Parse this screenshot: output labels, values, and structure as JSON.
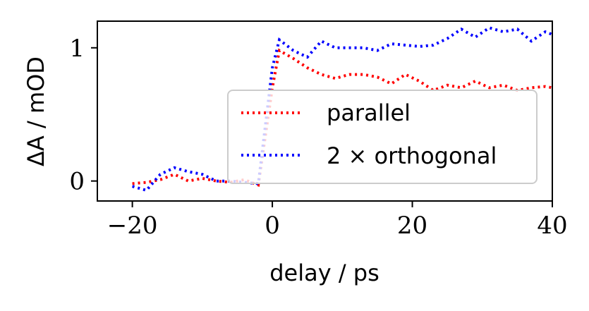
{
  "chart_data": {
    "type": "line",
    "xlabel": "delay / ps",
    "ylabel": "ΔA / mOD",
    "xlim": [
      -25,
      40
    ],
    "ylim": [
      -0.15,
      1.2
    ],
    "xticks": [
      -20,
      0,
      20,
      40
    ],
    "xtick_labels": [
      "−20",
      "0",
      "20",
      "40"
    ],
    "yticks": [
      0,
      1
    ],
    "ytick_labels": [
      "0",
      "1"
    ],
    "grid": false,
    "legend_position": "center-right",
    "series": [
      {
        "name": "parallel",
        "color": "#ff0000",
        "style": "dotted",
        "x": [
          -20,
          -18,
          -16,
          -14,
          -12,
          -10,
          -8,
          -6,
          -4,
          -2,
          0,
          1,
          3,
          5,
          7,
          9,
          11,
          13,
          15,
          17,
          19,
          21,
          23,
          25,
          27,
          29,
          31,
          33,
          35,
          37,
          39,
          40
        ],
        "y": [
          -0.02,
          -0.01,
          0.01,
          0.05,
          0.0,
          0.02,
          0.0,
          -0.01,
          0.01,
          -0.03,
          0.7,
          0.98,
          0.92,
          0.85,
          0.8,
          0.77,
          0.8,
          0.8,
          0.78,
          0.73,
          0.8,
          0.75,
          0.68,
          0.72,
          0.7,
          0.75,
          0.7,
          0.72,
          0.68,
          0.7,
          0.71,
          0.7
        ]
      },
      {
        "name": "2 × orthogonal",
        "color": "#0000ff",
        "style": "dotted",
        "x": [
          -20,
          -18,
          -16,
          -14,
          -12,
          -10,
          -8,
          -6,
          -4,
          -2,
          0,
          1,
          3,
          5,
          7,
          9,
          11,
          13,
          15,
          17,
          19,
          21,
          23,
          25,
          27,
          29,
          31,
          33,
          35,
          37,
          39,
          40
        ],
        "y": [
          -0.04,
          -0.07,
          0.05,
          0.1,
          0.07,
          0.05,
          0.0,
          0.0,
          -0.01,
          -0.02,
          0.85,
          1.06,
          0.98,
          0.93,
          1.05,
          1.0,
          1.0,
          1.0,
          0.98,
          1.03,
          1.02,
          1.01,
          1.02,
          1.07,
          1.14,
          1.08,
          1.15,
          1.12,
          1.14,
          1.05,
          1.12,
          1.1
        ]
      }
    ]
  }
}
